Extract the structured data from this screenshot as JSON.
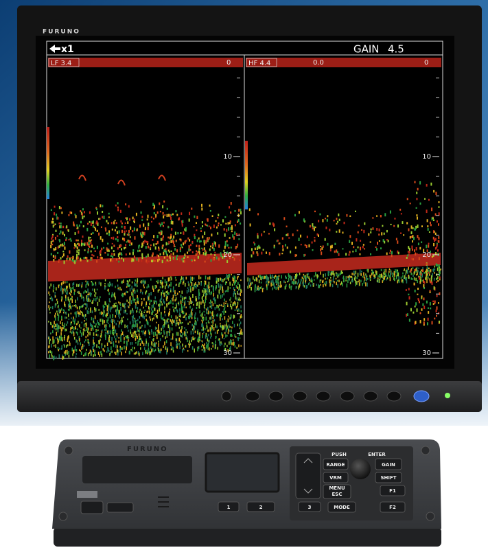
{
  "monitor": {
    "brand": "FURUNO"
  },
  "screen": {
    "range_mark": "x1",
    "gain_label": "GAIN",
    "gain_value": "4.5",
    "panels": [
      {
        "label": "LF 3.4",
        "top_values": [
          "0"
        ],
        "depth_ticks": [
          10,
          20,
          30
        ]
      },
      {
        "label": "HF 4.4",
        "top_values": [
          "0.0",
          "0"
        ],
        "depth_ticks": [
          10,
          20,
          30
        ]
      }
    ]
  },
  "controller": {
    "brand": "FURUNO",
    "keys": {
      "push": "PUSH",
      "enter": "ENTER",
      "range": "RANGE",
      "gain": "GAIN",
      "vrm": "VRM",
      "shift": "SHIFT",
      "menu": "MENU",
      "esc": "ESC",
      "mode": "MODE",
      "f1": "F1",
      "f2": "F2",
      "k1": "1",
      "k2": "2",
      "k3": "3"
    }
  }
}
